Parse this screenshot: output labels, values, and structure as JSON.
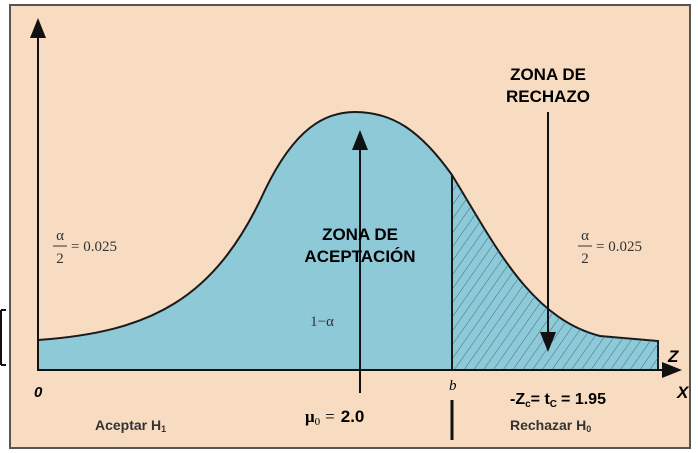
{
  "diagram": {
    "reject_zone": [
      "ZONA DE",
      "RECHAZO"
    ],
    "accept_zone": [
      "ZONA DE",
      "ACEPTACIÓN"
    ],
    "alpha_left": {
      "numerator": "α",
      "denominator": "2",
      "equals": "= 0.025"
    },
    "alpha_right": {
      "numerator": "α",
      "denominator": "2",
      "equals": "= 0.025"
    },
    "one_minus_alpha": "1−α",
    "origin": "0",
    "b": "b",
    "z_axis": "Z",
    "x_axis": "X",
    "mu": {
      "symbol": "μ",
      "sub": "0",
      "equals": "=",
      "value": "2.0"
    },
    "critical": {
      "z": "-Z",
      "z_sub": "c",
      "mid": "= t",
      "t_sub": "C",
      "rest": "= 1.95"
    },
    "accept_label": {
      "text": "Aceptar H",
      "sub": "1"
    },
    "reject_label": {
      "text": "Rechazar H",
      "sub": "0"
    }
  }
}
